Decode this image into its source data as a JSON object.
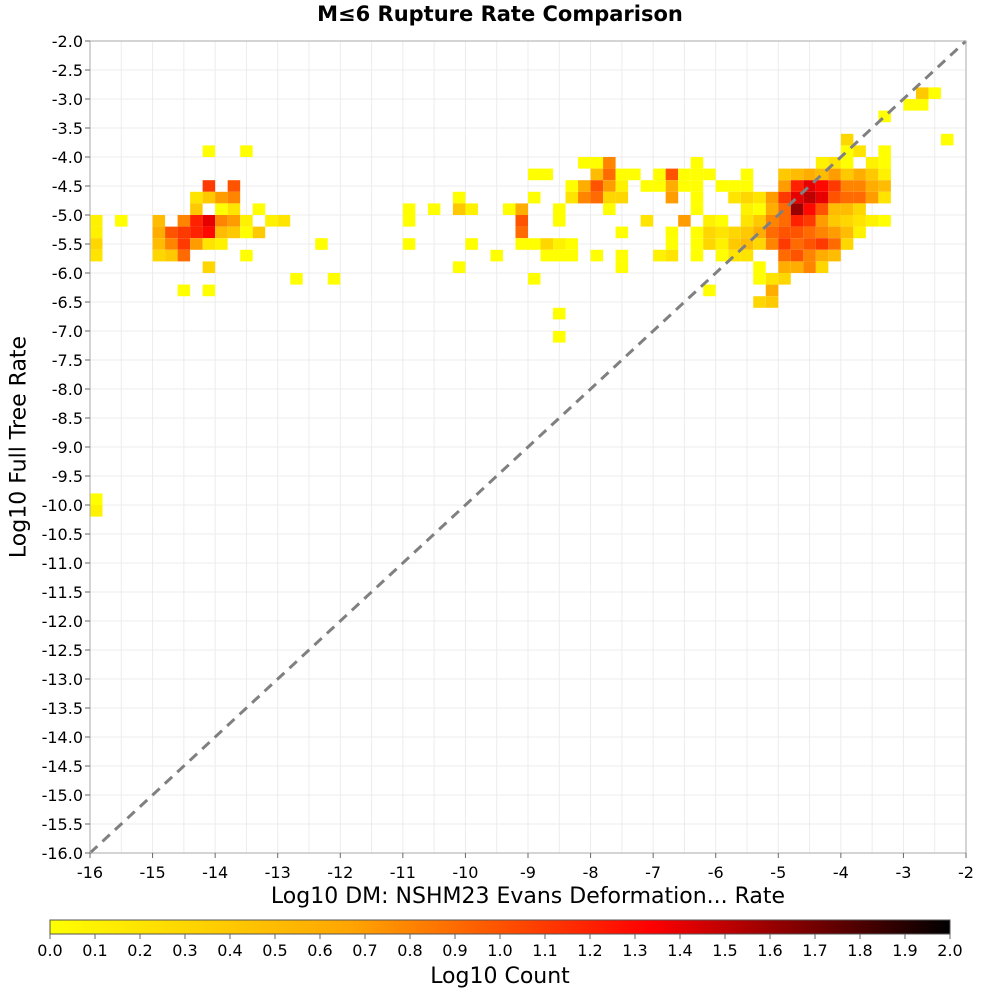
{
  "chart_data": {
    "type": "heatmap",
    "title": "M≤6 Rupture Rate Comparison",
    "xlabel": "Log10 DM: NSHM23 Evans Deformation... Rate",
    "ylabel": "Log10 Full Tree Rate",
    "xlim": [
      -16,
      -2
    ],
    "ylim": [
      -16,
      -2
    ],
    "x_ticks": [
      "-16",
      "-15",
      "-14",
      "-13",
      "-12",
      "-11",
      "-10",
      "-9",
      "-8",
      "-7",
      "-6",
      "-5",
      "-4",
      "-3",
      "-2"
    ],
    "y_ticks": [
      "-2.0",
      "-2.5",
      "-3.0",
      "-3.5",
      "-4.0",
      "-4.5",
      "-5.0",
      "-5.5",
      "-6.0",
      "-6.5",
      "-7.0",
      "-7.5",
      "-8.0",
      "-8.5",
      "-9.0",
      "-9.5",
      "-10.0",
      "-10.5",
      "-11.0",
      "-11.5",
      "-12.0",
      "-12.5",
      "-13.0",
      "-13.5",
      "-14.0",
      "-14.5",
      "-15.0",
      "-15.5",
      "-16.0"
    ],
    "grid": true,
    "bin_width": 0.2,
    "bin_height": 0.2,
    "reference_line": {
      "style": "dashed",
      "color": "#808080",
      "from": [
        -16,
        -16
      ],
      "to": [
        -2,
        -2
      ]
    },
    "colorbar": {
      "label": "Log10 Count",
      "min": 0.0,
      "max": 2.0,
      "ticks": [
        "0.0",
        "0.1",
        "0.2",
        "0.3",
        "0.4",
        "0.5",
        "0.6",
        "0.7",
        "0.8",
        "0.9",
        "1.0",
        "1.1",
        "1.2",
        "1.3",
        "1.4",
        "1.5",
        "1.6",
        "1.7",
        "1.8",
        "1.9",
        "2.0"
      ],
      "colors": [
        "#ffff00",
        "#ffa500",
        "#ff0000",
        "#000000"
      ]
    },
    "cells": [
      [
        -16.0,
        -5.0,
        0.1
      ],
      [
        -16.0,
        -5.2,
        0.1
      ],
      [
        -16.0,
        -5.4,
        0.3
      ],
      [
        -16.0,
        -5.6,
        0.2
      ],
      [
        -15.6,
        -5.0,
        0.0
      ],
      [
        -15.0,
        -5.0,
        0.5
      ],
      [
        -15.0,
        -5.2,
        0.6
      ],
      [
        -15.0,
        -5.4,
        0.5
      ],
      [
        -15.0,
        -5.6,
        0.3
      ],
      [
        -14.8,
        -5.2,
        1.0
      ],
      [
        -14.8,
        -5.4,
        0.8
      ],
      [
        -14.8,
        -5.6,
        0.4
      ],
      [
        -14.6,
        -5.0,
        0.8
      ],
      [
        -14.6,
        -5.2,
        1.1
      ],
      [
        -14.6,
        -5.4,
        1.1
      ],
      [
        -14.6,
        -5.6,
        0.9
      ],
      [
        -14.6,
        -6.2,
        0.0
      ],
      [
        -14.4,
        -4.6,
        0.2
      ],
      [
        -14.4,
        -4.8,
        0.4
      ],
      [
        -14.4,
        -5.0,
        1.2
      ],
      [
        -14.4,
        -5.2,
        1.2
      ],
      [
        -14.4,
        -5.4,
        0.7
      ],
      [
        -14.2,
        -4.4,
        1.1
      ],
      [
        -14.2,
        -4.6,
        0.4
      ],
      [
        -14.2,
        -5.0,
        1.4
      ],
      [
        -14.2,
        -5.2,
        1.3
      ],
      [
        -14.2,
        -5.4,
        0.2
      ],
      [
        -14.2,
        -3.8,
        0.0
      ],
      [
        -14.2,
        -5.8,
        0.3
      ],
      [
        -14.2,
        -6.2,
        0.0
      ],
      [
        -14.0,
        -4.6,
        0.7
      ],
      [
        -14.0,
        -4.8,
        0.0
      ],
      [
        -14.0,
        -5.0,
        0.8
      ],
      [
        -14.0,
        -5.2,
        0.5
      ],
      [
        -14.0,
        -5.4,
        0.1
      ],
      [
        -13.8,
        -4.4,
        1.0
      ],
      [
        -13.8,
        -4.6,
        0.8
      ],
      [
        -13.8,
        -4.8,
        0.2
      ],
      [
        -13.8,
        -5.0,
        0.7
      ],
      [
        -13.8,
        -5.2,
        0.4
      ],
      [
        -13.6,
        -5.0,
        0.1
      ],
      [
        -13.6,
        -5.2,
        0.0
      ],
      [
        -13.6,
        -5.6,
        0.0
      ],
      [
        -13.6,
        -3.8,
        0.0
      ],
      [
        -13.4,
        -4.8,
        0.0
      ],
      [
        -13.4,
        -5.2,
        0.4
      ],
      [
        -13.2,
        -5.0,
        0.1
      ],
      [
        -13.0,
        -5.0,
        0.2
      ],
      [
        -12.8,
        -6.0,
        0.0
      ],
      [
        -12.4,
        -5.4,
        0.0
      ],
      [
        -12.2,
        -6.0,
        0.0
      ],
      [
        -11.0,
        -4.8,
        0.0
      ],
      [
        -11.0,
        -5.0,
        0.0
      ],
      [
        -11.0,
        -5.4,
        0.0
      ],
      [
        -10.6,
        -4.8,
        0.0
      ],
      [
        -10.2,
        -4.6,
        0.0
      ],
      [
        -10.2,
        -4.8,
        0.4
      ],
      [
        -10.2,
        -5.8,
        0.0
      ],
      [
        -10.0,
        -4.8,
        0.1
      ],
      [
        -10.0,
        -5.4,
        0.0
      ],
      [
        -9.6,
        -5.6,
        0.0
      ],
      [
        -9.4,
        -4.8,
        0.0
      ],
      [
        -9.2,
        -4.8,
        0.6
      ],
      [
        -9.2,
        -5.0,
        1.0
      ],
      [
        -9.2,
        -5.2,
        0.9
      ],
      [
        -9.2,
        -5.4,
        0.0
      ],
      [
        -9.0,
        -4.2,
        0.0
      ],
      [
        -9.0,
        -4.6,
        0.0
      ],
      [
        -9.0,
        -5.4,
        0.0
      ],
      [
        -9.0,
        -6.0,
        0.0
      ],
      [
        -8.8,
        -4.2,
        0.0
      ],
      [
        -8.8,
        -5.4,
        0.3
      ],
      [
        -8.8,
        -5.6,
        0.0
      ],
      [
        -8.6,
        -4.8,
        0.0
      ],
      [
        -8.6,
        -5.0,
        0.0
      ],
      [
        -8.6,
        -5.4,
        0.1
      ],
      [
        -8.6,
        -5.6,
        0.0
      ],
      [
        -8.6,
        -6.6,
        0.0
      ],
      [
        -8.6,
        -7.0,
        0.0
      ],
      [
        -8.4,
        -4.4,
        0.0
      ],
      [
        -8.4,
        -4.6,
        0.2
      ],
      [
        -8.4,
        -5.4,
        0.0
      ],
      [
        -8.4,
        -5.6,
        0.0
      ],
      [
        -8.2,
        -4.0,
        0.0
      ],
      [
        -8.2,
        -4.4,
        0.6
      ],
      [
        -8.2,
        -4.6,
        0.8
      ],
      [
        -8.0,
        -4.0,
        0.0
      ],
      [
        -8.0,
        -4.2,
        0.5
      ],
      [
        -8.0,
        -4.4,
        1.0
      ],
      [
        -8.0,
        -4.6,
        0.9
      ],
      [
        -8.0,
        -5.6,
        0.0
      ],
      [
        -7.8,
        -4.0,
        0.8
      ],
      [
        -7.8,
        -4.2,
        0.9
      ],
      [
        -7.8,
        -4.4,
        0.7
      ],
      [
        -7.8,
        -4.6,
        0.3
      ],
      [
        -7.8,
        -4.8,
        0.0
      ],
      [
        -7.6,
        -4.2,
        0.0
      ],
      [
        -7.6,
        -4.4,
        0.1
      ],
      [
        -7.6,
        -4.6,
        0.3
      ],
      [
        -7.6,
        -5.2,
        0.0
      ],
      [
        -7.6,
        -5.6,
        0.0
      ],
      [
        -7.6,
        -5.8,
        0.0
      ],
      [
        -7.4,
        -4.2,
        0.0
      ],
      [
        -7.2,
        -4.4,
        0.0
      ],
      [
        -7.2,
        -5.0,
        0.2
      ],
      [
        -7.0,
        -4.2,
        0.0
      ],
      [
        -7.0,
        -4.4,
        0.0
      ],
      [
        -7.0,
        -5.6,
        0.1
      ],
      [
        -6.8,
        -4.2,
        1.0
      ],
      [
        -6.8,
        -4.4,
        0.6
      ],
      [
        -6.8,
        -4.6,
        0.7
      ],
      [
        -6.8,
        -5.2,
        0.0
      ],
      [
        -6.8,
        -5.4,
        0.0
      ],
      [
        -6.8,
        -5.6,
        0.2
      ],
      [
        -6.6,
        -4.2,
        0.0
      ],
      [
        -6.6,
        -4.4,
        0.0
      ],
      [
        -6.6,
        -5.0,
        0.7
      ],
      [
        -6.4,
        -4.0,
        0.0
      ],
      [
        -6.4,
        -4.2,
        0.0
      ],
      [
        -6.4,
        -4.4,
        0.0
      ],
      [
        -6.4,
        -4.6,
        0.0
      ],
      [
        -6.4,
        -4.8,
        0.0
      ],
      [
        -6.4,
        -5.2,
        0.0
      ],
      [
        -6.4,
        -5.4,
        0.0
      ],
      [
        -6.4,
        -5.6,
        0.0
      ],
      [
        -6.2,
        -4.2,
        0.0
      ],
      [
        -6.2,
        -5.0,
        0.1
      ],
      [
        -6.2,
        -5.2,
        0.3
      ],
      [
        -6.2,
        -5.4,
        0.3
      ],
      [
        -6.2,
        -6.2,
        0.0
      ],
      [
        -6.0,
        -4.4,
        0.0
      ],
      [
        -6.0,
        -5.0,
        0.0
      ],
      [
        -6.0,
        -5.2,
        0.2
      ],
      [
        -6.0,
        -5.4,
        0.1
      ],
      [
        -6.0,
        -5.6,
        0.0
      ],
      [
        -5.8,
        -4.4,
        0.0
      ],
      [
        -5.8,
        -4.6,
        0.2
      ],
      [
        -5.8,
        -5.2,
        0.3
      ],
      [
        -5.8,
        -5.4,
        0.4
      ],
      [
        -5.8,
        -5.6,
        0.2
      ],
      [
        -5.6,
        -4.2,
        0.0
      ],
      [
        -5.6,
        -4.4,
        0.0
      ],
      [
        -5.6,
        -4.6,
        0.3
      ],
      [
        -5.6,
        -4.8,
        0.1
      ],
      [
        -5.6,
        -5.0,
        0.2
      ],
      [
        -5.6,
        -5.2,
        0.4
      ],
      [
        -5.6,
        -5.4,
        0.5
      ],
      [
        -5.6,
        -5.6,
        0.2
      ],
      [
        -5.4,
        -4.6,
        0.2
      ],
      [
        -5.4,
        -4.8,
        0.0
      ],
      [
        -5.4,
        -5.0,
        0.4
      ],
      [
        -5.4,
        -5.2,
        0.6
      ],
      [
        -5.4,
        -5.4,
        0.3
      ],
      [
        -5.4,
        -5.8,
        0.0
      ],
      [
        -5.4,
        -6.0,
        0.0
      ],
      [
        -5.4,
        -6.4,
        0.3
      ],
      [
        -5.2,
        -4.6,
        0.7
      ],
      [
        -5.2,
        -4.8,
        0.6
      ],
      [
        -5.2,
        -5.0,
        0.8
      ],
      [
        -5.2,
        -5.2,
        0.9
      ],
      [
        -5.2,
        -5.4,
        0.8
      ],
      [
        -5.2,
        -6.0,
        0.2
      ],
      [
        -5.2,
        -6.2,
        0.6
      ],
      [
        -5.2,
        -6.4,
        0.4
      ],
      [
        -5.0,
        -4.2,
        0.4
      ],
      [
        -5.0,
        -4.4,
        0.7
      ],
      [
        -5.0,
        -4.6,
        1.1
      ],
      [
        -5.0,
        -4.8,
        0.9
      ],
      [
        -5.0,
        -5.0,
        0.9
      ],
      [
        -5.0,
        -5.2,
        1.0
      ],
      [
        -5.0,
        -5.4,
        1.1
      ],
      [
        -5.0,
        -5.6,
        0.9
      ],
      [
        -5.0,
        -5.8,
        0.6
      ],
      [
        -5.0,
        -6.0,
        0.3
      ],
      [
        -4.8,
        -4.2,
        0.5
      ],
      [
        -4.8,
        -4.4,
        1.2
      ],
      [
        -4.8,
        -4.6,
        1.4
      ],
      [
        -4.8,
        -4.8,
        1.6
      ],
      [
        -4.8,
        -5.0,
        1.2
      ],
      [
        -4.8,
        -5.2,
        1.0
      ],
      [
        -4.8,
        -5.4,
        0.9
      ],
      [
        -4.8,
        -5.6,
        1.0
      ],
      [
        -4.8,
        -5.8,
        0.6
      ],
      [
        -4.6,
        -4.2,
        0.6
      ],
      [
        -4.6,
        -4.4,
        1.4
      ],
      [
        -4.6,
        -4.6,
        1.5
      ],
      [
        -4.6,
        -4.8,
        1.3
      ],
      [
        -4.6,
        -5.0,
        1.1
      ],
      [
        -4.6,
        -5.2,
        0.9
      ],
      [
        -4.6,
        -5.4,
        1.0
      ],
      [
        -4.6,
        -5.6,
        0.8
      ],
      [
        -4.6,
        -5.8,
        0.8
      ],
      [
        -4.4,
        -4.0,
        0.1
      ],
      [
        -4.4,
        -4.2,
        0.5
      ],
      [
        -4.4,
        -4.4,
        1.3
      ],
      [
        -4.4,
        -4.6,
        1.4
      ],
      [
        -4.4,
        -4.8,
        1.0
      ],
      [
        -4.4,
        -5.0,
        0.7
      ],
      [
        -4.4,
        -5.2,
        0.8
      ],
      [
        -4.4,
        -5.4,
        1.1
      ],
      [
        -4.4,
        -5.6,
        0.6
      ],
      [
        -4.4,
        -5.8,
        0.3
      ],
      [
        -4.2,
        -4.0,
        0.2
      ],
      [
        -4.2,
        -4.2,
        0.7
      ],
      [
        -4.2,
        -4.4,
        1.1
      ],
      [
        -4.2,
        -4.6,
        1.0
      ],
      [
        -4.2,
        -4.8,
        0.5
      ],
      [
        -4.2,
        -5.0,
        0.4
      ],
      [
        -4.2,
        -5.2,
        0.7
      ],
      [
        -4.2,
        -5.4,
        0.9
      ],
      [
        -4.2,
        -5.6,
        0.5
      ],
      [
        -4.0,
        -3.6,
        0.3
      ],
      [
        -4.0,
        -3.8,
        0.0
      ],
      [
        -4.0,
        -4.0,
        0.0
      ],
      [
        -4.0,
        -4.2,
        0.4
      ],
      [
        -4.0,
        -4.4,
        0.8
      ],
      [
        -4.0,
        -4.6,
        0.9
      ],
      [
        -4.0,
        -4.8,
        0.5
      ],
      [
        -4.0,
        -5.0,
        0.3
      ],
      [
        -4.0,
        -5.2,
        0.5
      ],
      [
        -4.0,
        -5.4,
        0.3
      ],
      [
        -3.8,
        -3.8,
        0.2
      ],
      [
        -3.8,
        -4.2,
        0.6
      ],
      [
        -3.8,
        -4.4,
        0.8
      ],
      [
        -3.8,
        -4.6,
        0.9
      ],
      [
        -3.8,
        -4.8,
        0.3
      ],
      [
        -3.8,
        -5.0,
        0.2
      ],
      [
        -3.8,
        -5.2,
        0.1
      ],
      [
        -3.6,
        -4.0,
        0.1
      ],
      [
        -3.6,
        -4.2,
        0.4
      ],
      [
        -3.6,
        -4.4,
        0.6
      ],
      [
        -3.6,
        -4.6,
        0.7
      ],
      [
        -3.6,
        -5.0,
        0.1
      ],
      [
        -3.4,
        -3.2,
        0.0
      ],
      [
        -3.4,
        -3.8,
        0.0
      ],
      [
        -3.4,
        -4.0,
        0.0
      ],
      [
        -3.4,
        -4.2,
        0.1
      ],
      [
        -3.4,
        -4.4,
        0.5
      ],
      [
        -3.4,
        -4.6,
        0.2
      ],
      [
        -3.4,
        -5.0,
        0.0
      ],
      [
        -3.0,
        -3.0,
        0.0
      ],
      [
        -2.8,
        -2.8,
        0.4
      ],
      [
        -2.8,
        -3.0,
        0.0
      ],
      [
        -2.6,
        -2.8,
        0.0
      ],
      [
        -2.4,
        -3.6,
        0.0
      ],
      [
        -16.0,
        -9.8,
        0.0
      ],
      [
        -16.0,
        -10.0,
        0.1
      ]
    ]
  }
}
